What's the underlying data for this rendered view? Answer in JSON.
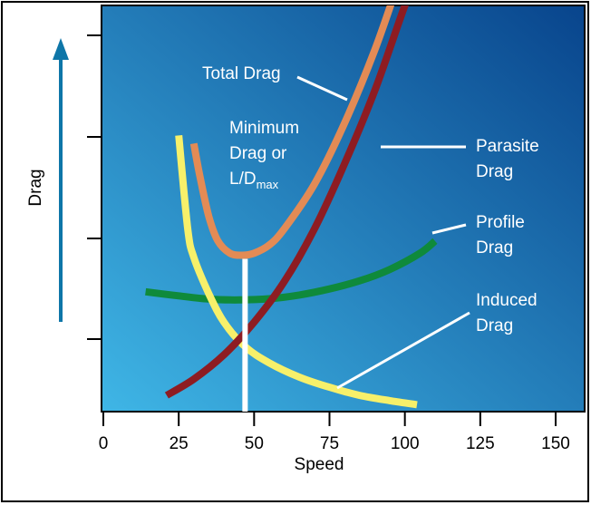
{
  "chart_data": {
    "type": "line",
    "title": "",
    "xlabel": "Speed",
    "ylabel": "Drag",
    "xlim": [
      0,
      160
    ],
    "x_ticks": [
      "0",
      "25",
      "50",
      "75",
      "100",
      "125",
      "150"
    ],
    "x_tick_values": [
      0,
      25,
      50,
      75,
      100,
      125,
      150
    ],
    "grid": false,
    "colors": {
      "background_gradient": [
        "#3fb6e6",
        "#08448c"
      ],
      "total": "#e38b55",
      "parasite": "#8e1c22",
      "profile": "#0f8a3b",
      "induced": "#f7f06a",
      "min_line": "#ffffff",
      "arrow": "#0e76a8"
    },
    "series": [
      {
        "key": "total",
        "name": "Total Drag",
        "x": [
          30,
          32,
          35,
          38,
          42,
          46,
          50,
          55,
          60,
          70,
          80,
          90,
          98
        ],
        "y": [
          0.66,
          0.58,
          0.48,
          0.42,
          0.39,
          0.385,
          0.39,
          0.41,
          0.45,
          0.56,
          0.71,
          0.89,
          1.06
        ]
      },
      {
        "key": "parasite",
        "name": "Parasite Drag",
        "x": [
          21,
          30,
          40,
          50,
          60,
          70,
          80,
          90,
          100,
          104
        ],
        "y": [
          0.04,
          0.08,
          0.14,
          0.22,
          0.32,
          0.45,
          0.61,
          0.79,
          1.0,
          1.07
        ]
      },
      {
        "key": "profile",
        "name": "Profile Drag",
        "x": [
          14,
          25,
          35,
          45,
          55,
          65,
          75,
          85,
          95,
          105,
          110
        ],
        "y": [
          0.295,
          0.285,
          0.277,
          0.275,
          0.278,
          0.287,
          0.302,
          0.322,
          0.35,
          0.39,
          0.42
        ]
      },
      {
        "key": "induced",
        "name": "Induced Drag",
        "x": [
          25,
          28,
          30,
          35,
          40,
          47,
          55,
          65,
          75,
          85,
          95,
          104
        ],
        "y": [
          0.68,
          0.45,
          0.38,
          0.29,
          0.22,
          0.16,
          0.12,
          0.085,
          0.06,
          0.04,
          0.027,
          0.017
        ]
      }
    ],
    "min_drag": {
      "x": 47,
      "y": 0.385
    },
    "annotations": {
      "total": "Total Drag",
      "min_l1": "Minimum",
      "min_l2": "Drag or",
      "min_l3": "L/D",
      "min_sub": "max",
      "parasite_l1": "Parasite",
      "parasite_l2": "Drag",
      "profile_l1": "Profile",
      "profile_l2": "Drag",
      "induced_l1": "Induced",
      "induced_l2": "Drag"
    }
  }
}
